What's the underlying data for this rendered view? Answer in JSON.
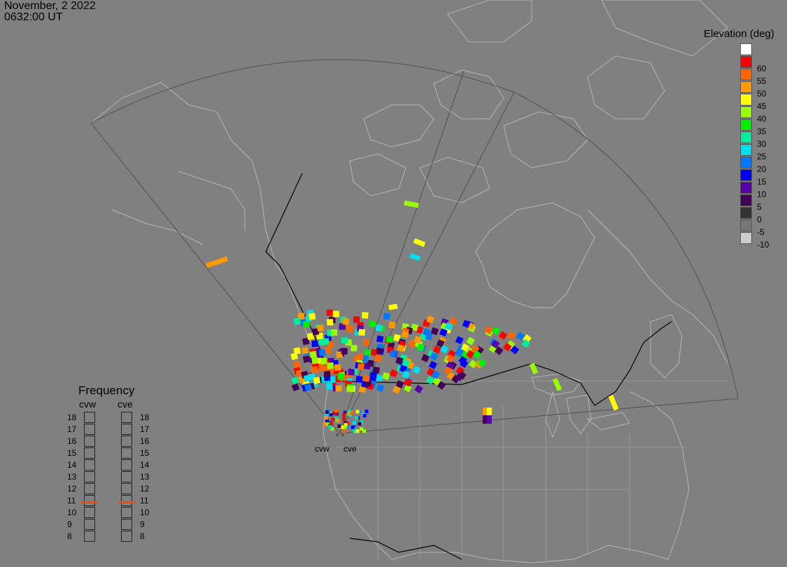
{
  "header": {
    "date": "November, 2 2022",
    "time": "0632:00 UT"
  },
  "legend": {
    "title": "Elevation (deg)",
    "entries": [
      {
        "label": "",
        "color": "#ffffff"
      },
      {
        "label": "60",
        "color": "#ff0000"
      },
      {
        "label": "55",
        "color": "#ff6600"
      },
      {
        "label": "50",
        "color": "#ff9900"
      },
      {
        "label": "45",
        "color": "#ffff00"
      },
      {
        "label": "40",
        "color": "#99ff00"
      },
      {
        "label": "35",
        "color": "#00ee00"
      },
      {
        "label": "30",
        "color": "#00ee99"
      },
      {
        "label": "25",
        "color": "#00ddee"
      },
      {
        "label": "20",
        "color": "#0077ff"
      },
      {
        "label": "15",
        "color": "#0000ff"
      },
      {
        "label": "10",
        "color": "#5500aa"
      },
      {
        "label": "5",
        "color": "#440055"
      },
      {
        "label": "0",
        "color": "#333333"
      },
      {
        "label": "-5",
        "color": "#777777"
      },
      {
        "label": "-10",
        "color": "#cccccc"
      }
    ]
  },
  "frequency": {
    "title": "Frequency",
    "radars": [
      "cvw",
      "cve"
    ],
    "scale": [
      "18",
      "17",
      "16",
      "15",
      "14",
      "13",
      "12",
      "11",
      "10",
      "9",
      "8"
    ],
    "current": {
      "cvw": 11,
      "cve": 11
    },
    "marker_color": "#ff4500"
  },
  "radar_labels": [
    "cvw",
    "cve"
  ],
  "map_colors": {
    "background": "#808080",
    "coastline": "#b5b5b5",
    "border": "#000000",
    "fov": "#505050"
  }
}
